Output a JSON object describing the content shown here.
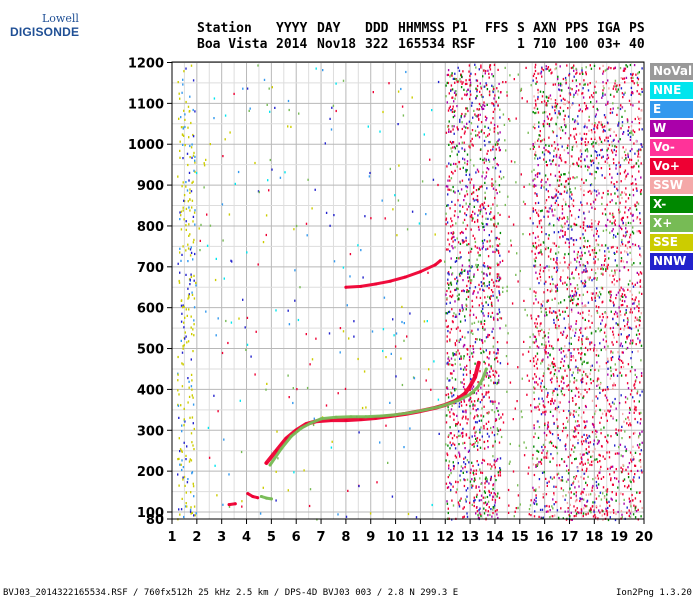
{
  "logo": {
    "line1": "Lowell",
    "line2": "DIGISONDE"
  },
  "header": {
    "labels": [
      "Station",
      "YYYY",
      "DAY",
      "DDD",
      "HHMMSS",
      "P1",
      "FFS",
      "S",
      "AXN",
      "PPS",
      "IGA",
      "PS"
    ],
    "values": [
      "Boa Vista",
      "2014",
      "Nov18",
      "322",
      "165534",
      "RSF",
      "",
      "1",
      "710",
      "100",
      "03+",
      "40"
    ]
  },
  "legend": [
    {
      "label": "NoVal",
      "color": "#999999"
    },
    {
      "label": "NNE",
      "color": "#00e5ee"
    },
    {
      "label": "E",
      "color": "#3399ee"
    },
    {
      "label": "W",
      "color": "#aa00aa"
    },
    {
      "label": "Vo-",
      "color": "#ff3399"
    },
    {
      "label": "Vo+",
      "color": "#ee0033"
    },
    {
      "label": "SSW",
      "color": "#f4a8a8"
    },
    {
      "label": "X-",
      "color": "#008800"
    },
    {
      "label": "X+",
      "color": "#77bb55"
    },
    {
      "label": "SSE",
      "color": "#cccc00"
    },
    {
      "label": "NNW",
      "color": "#2222cc"
    }
  ],
  "chart_data": {
    "type": "scatter",
    "title": "",
    "xlabel": "",
    "ylabel": "",
    "xlim": [
      1,
      20
    ],
    "ylim": [
      80,
      1200
    ],
    "x_ticks": [
      "1",
      "2",
      "3",
      "4",
      "5",
      "6",
      "7",
      "8",
      "9",
      "10",
      "11",
      "12",
      "13",
      "14",
      "15",
      "16",
      "17",
      "18",
      "19",
      "20"
    ],
    "y_ticks": [
      "80",
      "100",
      "200",
      "300",
      "400",
      "500",
      "600",
      "700",
      "800",
      "900",
      "1000",
      "1100",
      "1200"
    ],
    "grid": true,
    "series": [
      {
        "name": "Vo+",
        "color": "#ee0033",
        "x": [
          4.8,
          5.2,
          5.6,
          6.0,
          6.4,
          6.8,
          7.4,
          8.0,
          8.6,
          9.2,
          9.8,
          10.4,
          11.0,
          11.6,
          12.0,
          12.4,
          12.8,
          13.0,
          13.2,
          13.35
        ],
        "y": [
          220,
          250,
          280,
          300,
          315,
          322,
          325,
          325,
          327,
          330,
          335,
          340,
          347,
          355,
          362,
          372,
          390,
          408,
          430,
          465
        ]
      },
      {
        "name": "X+",
        "color": "#77bb55",
        "x": [
          4.95,
          5.4,
          5.8,
          6.2,
          6.6,
          7.0,
          7.6,
          8.2,
          8.8,
          9.4,
          10.0,
          10.6,
          11.2,
          11.8,
          12.2,
          12.6,
          13.0,
          13.3,
          13.5,
          13.65
        ],
        "y": [
          215,
          255,
          285,
          305,
          318,
          328,
          332,
          333,
          333,
          335,
          338,
          343,
          350,
          358,
          366,
          375,
          388,
          405,
          425,
          450
        ]
      },
      {
        "name": "Vo+",
        "color": "#ee0033",
        "x": [
          8.0,
          8.6,
          9.2,
          9.8,
          10.4,
          11.0,
          11.6,
          11.8
        ],
        "y": [
          650,
          652,
          658,
          665,
          675,
          688,
          705,
          715
        ]
      },
      {
        "name": "Vo+",
        "color": "#ee0033",
        "x": [
          3.3,
          3.55
        ],
        "y": [
          118,
          120
        ]
      },
      {
        "name": "Vo+",
        "color": "#ee0033",
        "x": [
          4.05,
          4.25,
          4.45
        ],
        "y": [
          145,
          138,
          135
        ]
      },
      {
        "name": "X+",
        "color": "#77bb55",
        "x": [
          4.6,
          4.8,
          5.0
        ],
        "y": [
          138,
          134,
          132
        ]
      }
    ]
  },
  "footer": {
    "left": "BVJ03_2014322165534.RSF / 760fx512h 25 kHz 2.5 km / DPS-4D BVJ03 003 / 2.8 N 299.3 E",
    "right": "Ion2Png 1.3.20"
  }
}
